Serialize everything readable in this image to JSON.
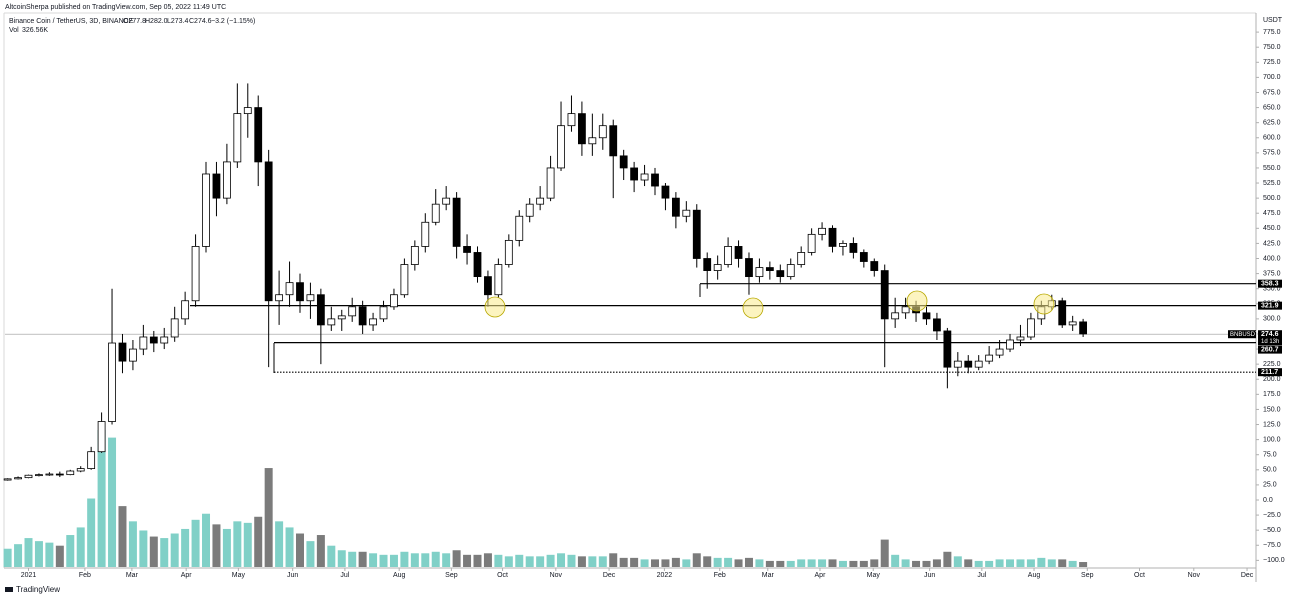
{
  "header": {
    "author_line": "AltcoinSherpa published on TradingView.com, Sep 05, 2022 11:49 UTC",
    "symbol_line": "Binance Coin / TetherUS, 3D, BINANCE",
    "open": "O277.8",
    "high": "H282.0",
    "low": "L273.4",
    "close": "C274.6",
    "change": "−3.2 (−1.15%)",
    "vol_label": "Vol",
    "vol_value": "326.56K",
    "currency": "USDT",
    "brand": "TradingView"
  },
  "chart_data": {
    "type": "candlestick",
    "symbol": "BNBUSDT",
    "last_price": 274.6,
    "countdown": "1d 13h",
    "up_color": "#ffffff",
    "down_color": "#000000",
    "volume_up_color": "#80d0c7",
    "volume_down_color": "#7b7b7b",
    "xlim": [
      -0.5,
      119.5
    ],
    "ylim": [
      -111,
      805
    ],
    "open": [
      33,
      35,
      37,
      41,
      42,
      43,
      42,
      48,
      52,
      80,
      130,
      260,
      230,
      250,
      270,
      260,
      270,
      300,
      330,
      420,
      540,
      500,
      560,
      640,
      650,
      560,
      330,
      340,
      360,
      330,
      340,
      290,
      300,
      305,
      320,
      290,
      300,
      320,
      340,
      390,
      420,
      460,
      490,
      500,
      420,
      410,
      370,
      340,
      390,
      430,
      470,
      490,
      500,
      550,
      620,
      640,
      590,
      600,
      620,
      570,
      550,
      530,
      540,
      520,
      500,
      470,
      480,
      400,
      380,
      390,
      420,
      400,
      370,
      385,
      380,
      370,
      390,
      410,
      440,
      450,
      420,
      425,
      410,
      395,
      380,
      300,
      310,
      320,
      310,
      300,
      280,
      220,
      230,
      220,
      230,
      240,
      250,
      265,
      270,
      300,
      320,
      330,
      290,
      295
    ],
    "high": [
      36,
      39,
      42,
      44,
      46,
      47,
      50,
      56,
      88,
      145,
      350,
      275,
      265,
      290,
      280,
      285,
      320,
      345,
      440,
      560,
      560,
      590,
      690,
      690,
      670,
      580,
      380,
      395,
      375,
      360,
      350,
      320,
      315,
      335,
      330,
      310,
      330,
      350,
      400,
      430,
      475,
      515,
      520,
      510,
      440,
      420,
      380,
      400,
      440,
      480,
      500,
      520,
      570,
      660,
      670,
      660,
      640,
      640,
      630,
      580,
      560,
      555,
      550,
      525,
      510,
      495,
      490,
      410,
      405,
      435,
      430,
      410,
      400,
      395,
      390,
      400,
      420,
      450,
      460,
      455,
      430,
      435,
      415,
      400,
      390,
      335,
      335,
      330,
      320,
      310,
      285,
      245,
      240,
      240,
      255,
      265,
      275,
      290,
      310,
      330,
      340,
      335,
      305,
      300
    ],
    "low": [
      32,
      34,
      36,
      39,
      40,
      38,
      41,
      46,
      50,
      78,
      125,
      210,
      215,
      240,
      245,
      250,
      262,
      290,
      320,
      410,
      470,
      490,
      550,
      600,
      520,
      220,
      290,
      320,
      310,
      300,
      225,
      280,
      280,
      295,
      275,
      280,
      295,
      315,
      335,
      380,
      410,
      455,
      480,
      400,
      390,
      360,
      320,
      335,
      385,
      420,
      460,
      480,
      495,
      545,
      610,
      570,
      570,
      580,
      500,
      530,
      510,
      520,
      505,
      480,
      450,
      460,
      385,
      350,
      365,
      385,
      385,
      340,
      360,
      365,
      360,
      365,
      385,
      405,
      430,
      410,
      405,
      400,
      385,
      370,
      220,
      285,
      300,
      295,
      290,
      265,
      185,
      205,
      210,
      215,
      225,
      235,
      245,
      255,
      265,
      290,
      315,
      285,
      280,
      270
    ],
    "close": [
      35,
      37,
      41,
      42,
      43,
      42,
      48,
      52,
      80,
      130,
      260,
      230,
      250,
      270,
      260,
      270,
      300,
      330,
      420,
      540,
      500,
      560,
      640,
      650,
      560,
      330,
      340,
      360,
      330,
      340,
      290,
      300,
      305,
      320,
      290,
      300,
      320,
      340,
      390,
      420,
      460,
      490,
      500,
      420,
      410,
      370,
      340,
      390,
      430,
      470,
      490,
      500,
      550,
      620,
      640,
      590,
      600,
      620,
      570,
      550,
      530,
      540,
      520,
      500,
      470,
      480,
      400,
      380,
      390,
      420,
      400,
      370,
      385,
      380,
      370,
      390,
      410,
      440,
      450,
      420,
      425,
      410,
      395,
      380,
      300,
      310,
      320,
      310,
      300,
      280,
      220,
      230,
      220,
      230,
      240,
      250,
      265,
      270,
      300,
      320,
      330,
      290,
      295,
      275
    ],
    "volume": [
      1200,
      1500,
      1900,
      1700,
      1600,
      1400,
      2100,
      2600,
      4500,
      9000,
      8500,
      4000,
      3000,
      2400,
      2000,
      1900,
      2200,
      2500,
      3100,
      3500,
      2800,
      2500,
      3000,
      2900,
      3300,
      6500,
      3000,
      2600,
      2200,
      1700,
      2100,
      1400,
      1100,
      1000,
      1000,
      900,
      800,
      800,
      1000,
      900,
      900,
      1000,
      900,
      1100,
      800,
      800,
      900,
      800,
      700,
      800,
      700,
      700,
      800,
      900,
      800,
      700,
      700,
      700,
      900,
      600,
      600,
      500,
      500,
      500,
      600,
      500,
      900,
      700,
      600,
      600,
      500,
      600,
      500,
      400,
      400,
      400,
      500,
      500,
      500,
      500,
      400,
      400,
      400,
      500,
      1800,
      800,
      500,
      400,
      400,
      500,
      1000,
      700,
      500,
      400,
      400,
      500,
      500,
      500,
      500,
      600,
      500,
      500,
      400,
      327
    ],
    "levels": [
      358.3,
      321.9,
      260.7,
      211.7
    ],
    "yticks": [
      {
        "value": 775,
        "label": "775.0"
      },
      {
        "value": 750,
        "label": "750.0"
      },
      {
        "value": 725,
        "label": "725.0"
      },
      {
        "value": 700,
        "label": "700.0"
      },
      {
        "value": 675,
        "label": "675.0"
      },
      {
        "value": 650,
        "label": "650.0"
      },
      {
        "value": 625,
        "label": "625.0"
      },
      {
        "value": 600,
        "label": "600.0"
      },
      {
        "value": 575,
        "label": "575.0"
      },
      {
        "value": 550,
        "label": "550.0"
      },
      {
        "value": 525,
        "label": "525.0"
      },
      {
        "value": 500,
        "label": "500.0"
      },
      {
        "value": 475,
        "label": "475.0"
      },
      {
        "value": 450,
        "label": "450.0"
      },
      {
        "value": 425,
        "label": "425.0"
      },
      {
        "value": 400,
        "label": "400.0"
      },
      {
        "value": 375,
        "label": "375.0"
      },
      {
        "value": 350,
        "label": "350.0"
      },
      {
        "value": 325,
        "label": "325.0"
      },
      {
        "value": 300,
        "label": "300.0"
      },
      {
        "value": 275,
        "label": "275.0"
      },
      {
        "value": 250,
        "label": "250.0"
      },
      {
        "value": 225,
        "label": "225.0"
      },
      {
        "value": 200,
        "label": "200.0"
      },
      {
        "value": 175,
        "label": "175.0"
      },
      {
        "value": 150,
        "label": "150.0"
      },
      {
        "value": 125,
        "label": "125.0"
      },
      {
        "value": 100,
        "label": "100.0"
      },
      {
        "value": 75,
        "label": "75.0"
      },
      {
        "value": 50,
        "label": "50.0"
      },
      {
        "value": 25,
        "label": "25.0"
      },
      {
        "value": 0,
        "label": "0.0"
      },
      {
        "value": -25,
        "label": "−25.0"
      },
      {
        "value": -50,
        "label": "−50.0"
      },
      {
        "value": -75,
        "label": "−75.0"
      },
      {
        "value": -100,
        "label": "−100.0"
      }
    ],
    "xticks": [
      {
        "value": 2.0,
        "label": "2021"
      },
      {
        "value": 7.4,
        "label": "Feb"
      },
      {
        "value": 11.9,
        "label": "Mar"
      },
      {
        "value": 17.1,
        "label": "Apr"
      },
      {
        "value": 22.1,
        "label": "May"
      },
      {
        "value": 27.3,
        "label": "Jun"
      },
      {
        "value": 32.3,
        "label": "Jul"
      },
      {
        "value": 37.5,
        "label": "Aug"
      },
      {
        "value": 42.5,
        "label": "Sep"
      },
      {
        "value": 47.4,
        "label": "Oct"
      },
      {
        "value": 52.5,
        "label": "Nov"
      },
      {
        "value": 57.6,
        "label": "Dec"
      },
      {
        "value": 62.9,
        "label": "2022"
      },
      {
        "value": 68.2,
        "label": "Feb"
      },
      {
        "value": 72.8,
        "label": "Mar"
      },
      {
        "value": 77.8,
        "label": "Apr"
      },
      {
        "value": 82.9,
        "label": "May"
      },
      {
        "value": 88.3,
        "label": "Jun"
      },
      {
        "value": 93.3,
        "label": "Jul"
      },
      {
        "value": 98.3,
        "label": "Aug"
      },
      {
        "value": 103.4,
        "label": "Sep"
      },
      {
        "value": 108.4,
        "label": "Oct"
      },
      {
        "value": 113.6,
        "label": "Nov"
      },
      {
        "value": 118.7,
        "label": "Dec"
      }
    ]
  }
}
